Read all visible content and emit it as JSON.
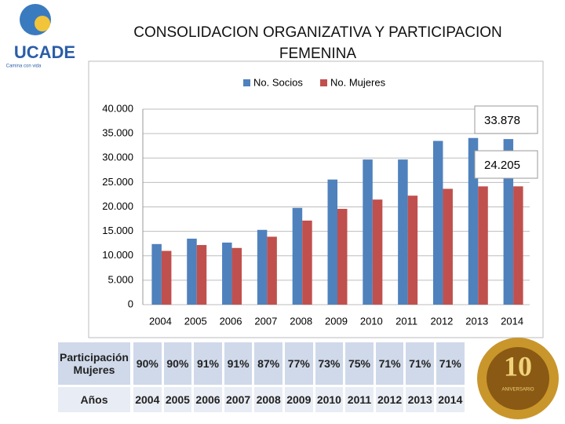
{
  "logo": {
    "text": "UCADE",
    "tagline": "Camina con vida"
  },
  "medal": {
    "number": "10",
    "text": "ANIVERSARIO"
  },
  "chart_data": {
    "type": "bar",
    "title": "CONSOLIDACION ORGANIZATIVA  Y PARTICIPACION FEMENINA",
    "categories": [
      "2004",
      "2005",
      "2006",
      "2007",
      "2008",
      "2009",
      "2010",
      "2011",
      "2012",
      "2013",
      "2014"
    ],
    "series": [
      {
        "name": "No. Socios",
        "color": "#4f81bd",
        "values": [
          12400,
          13500,
          12700,
          15300,
          19800,
          25600,
          29700,
          29700,
          33500,
          34100,
          33878
        ],
        "value_labels": [
          null,
          null,
          null,
          null,
          null,
          null,
          null,
          null,
          null,
          null,
          "33.878"
        ]
      },
      {
        "name": "No. Mujeres",
        "color": "#c0504d",
        "values": [
          11000,
          12200,
          11600,
          13900,
          17200,
          19600,
          21500,
          22300,
          23700,
          24200,
          24205
        ],
        "value_labels": [
          null,
          null,
          null,
          null,
          null,
          null,
          null,
          null,
          null,
          null,
          "24.205"
        ]
      }
    ],
    "ylim": [
      0,
      40000
    ],
    "yticks": [
      0,
      {
        "value": 5000,
        "label": "5.000"
      },
      {
        "value": 10000,
        "label": "10.000"
      },
      {
        "value": 15000,
        "label": "15.000"
      },
      {
        "value": 20000,
        "label": "20.000"
      },
      {
        "value": 25000,
        "label": "25.000"
      },
      {
        "value": 30000,
        "label": "30.000"
      },
      {
        "value": 35000,
        "label": "35.000"
      },
      {
        "value": 40000,
        "label": "40.000"
      }
    ],
    "grid": true,
    "legend": "top"
  },
  "table": {
    "rows": [
      [
        "Participación Mujeres",
        "90%",
        "90%",
        "91%",
        "91%",
        "87%",
        "77%",
        "73%",
        "75%",
        "71%",
        "71%",
        "71%"
      ],
      [
        "Años",
        "2004",
        "2005",
        "2006",
        "2007",
        "2008",
        "2009",
        "2010",
        "2011",
        "2012",
        "2013",
        "2014"
      ]
    ]
  }
}
